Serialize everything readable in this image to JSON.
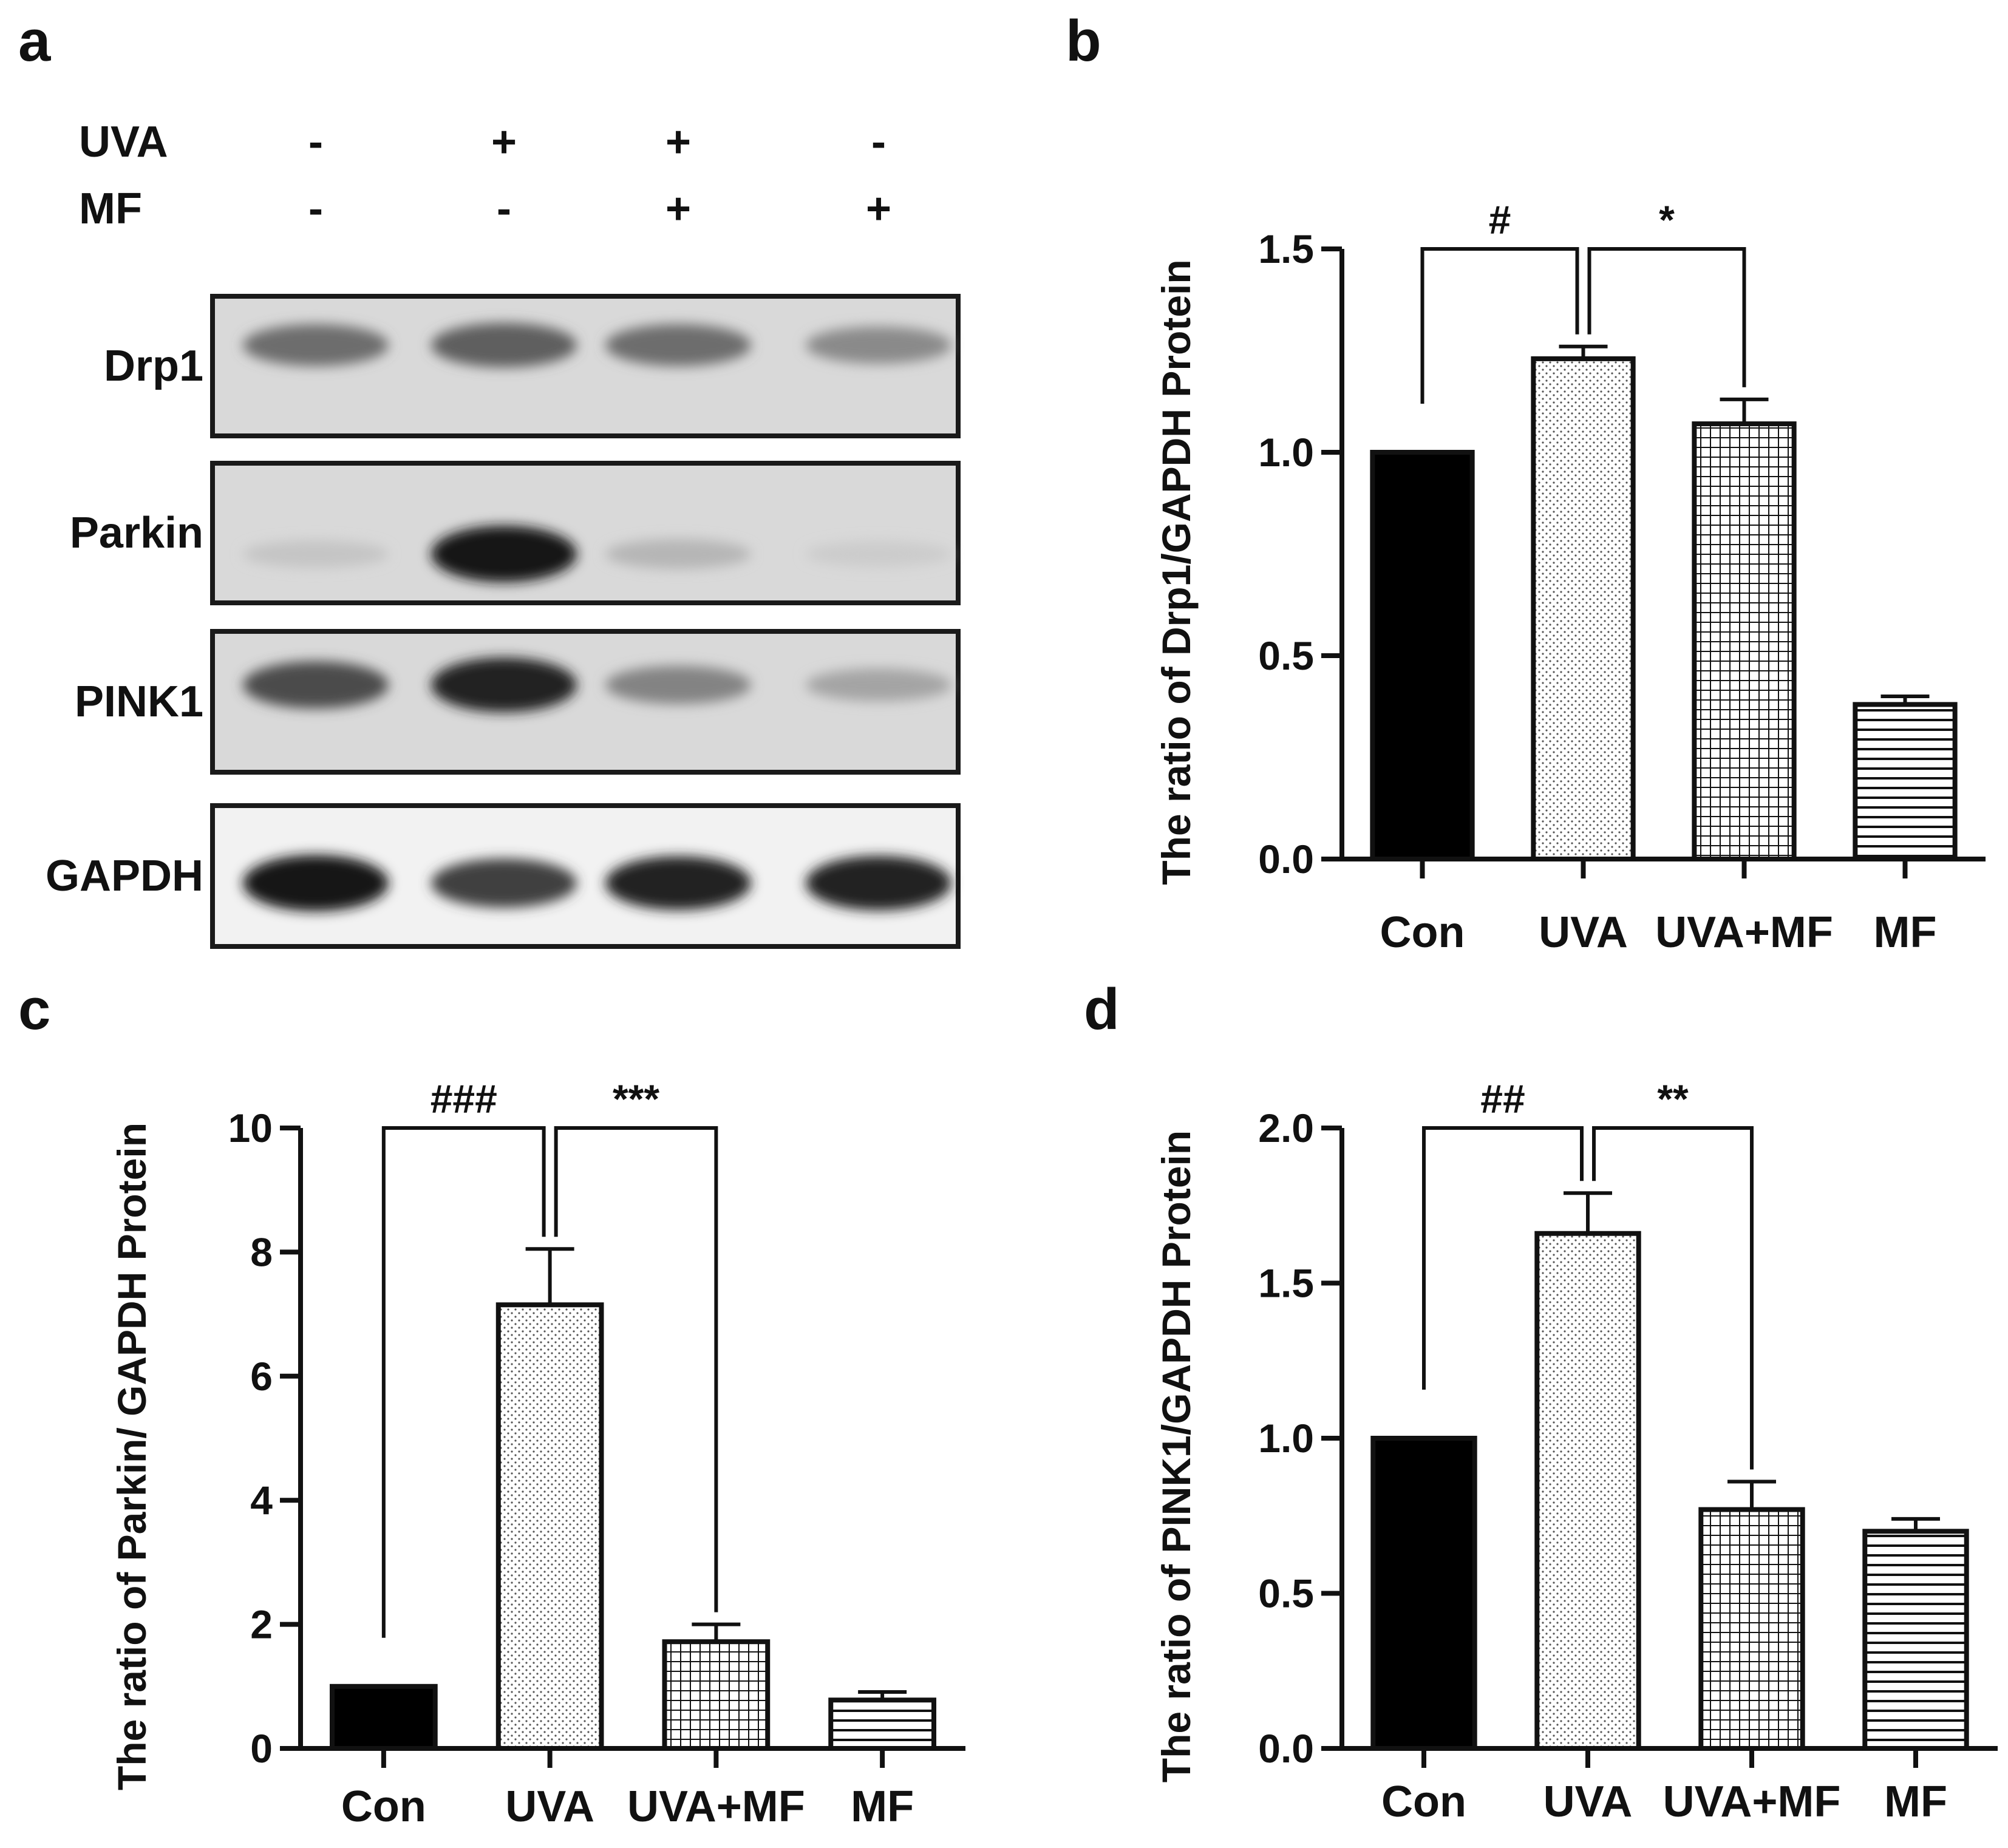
{
  "panel_letters": {
    "a": "a",
    "b": "b",
    "c": "c",
    "d": "d"
  },
  "blot": {
    "condition_rows": [
      {
        "label": "UVA",
        "marks": [
          "-",
          "+",
          "+",
          "-"
        ]
      },
      {
        "label": "MF",
        "marks": [
          "-",
          "-",
          "+",
          "+"
        ]
      }
    ],
    "bands": [
      {
        "label": "Drp1",
        "intensity": [
          0.55,
          0.62,
          0.55,
          0.42
        ]
      },
      {
        "label": "Parkin",
        "intensity": [
          0.15,
          0.95,
          0.22,
          0.12
        ]
      },
      {
        "label": "PINK1",
        "intensity": [
          0.7,
          0.9,
          0.45,
          0.3
        ]
      },
      {
        "label": "GAPDH",
        "intensity": [
          0.95,
          0.75,
          0.88,
          0.9
        ]
      }
    ]
  },
  "chart_data": [
    {
      "type": "bar",
      "panel": "b",
      "categories": [
        "Con",
        "UVA",
        "UVA+MF",
        "MF"
      ],
      "values": [
        1.0,
        1.23,
        1.07,
        0.38
      ],
      "errors": [
        0,
        0.03,
        0.06,
        0.02
      ],
      "patterns": [
        "solid",
        "dots",
        "grid",
        "hlines"
      ],
      "ylabel": "The ratio of Drp1/GAPDH Protein",
      "ylim": [
        0,
        1.5
      ],
      "yticks": [
        "0.0",
        "0.5",
        "1.0",
        "1.5"
      ],
      "significance": [
        {
          "label": "#",
          "from": 0,
          "to": 1,
          "level": 1.5
        },
        {
          "label": "*",
          "from": 1,
          "to": 2,
          "level": 1.5
        }
      ]
    },
    {
      "type": "bar",
      "panel": "c",
      "categories": [
        "Con",
        "UVA",
        "UVA+MF",
        "MF"
      ],
      "values": [
        1.0,
        7.15,
        1.72,
        0.78
      ],
      "errors": [
        0,
        0.9,
        0.28,
        0.13
      ],
      "patterns": [
        "solid",
        "dots",
        "grid",
        "hlines"
      ],
      "ylabel": "The ratio of Parkin/ GAPDH Protein",
      "ylim": [
        0,
        10
      ],
      "yticks": [
        "0",
        "2",
        "4",
        "6",
        "8",
        "10"
      ],
      "significance": [
        {
          "label": "###",
          "from": 0,
          "to": 1,
          "level": 10
        },
        {
          "label": "***",
          "from": 1,
          "to": 2,
          "level": 10
        }
      ]
    },
    {
      "type": "bar",
      "panel": "d",
      "categories": [
        "Con",
        "UVA",
        "UVA+MF",
        "MF"
      ],
      "values": [
        1.0,
        1.66,
        0.77,
        0.7
      ],
      "errors": [
        0,
        0.13,
        0.09,
        0.04
      ],
      "patterns": [
        "solid",
        "dots",
        "grid",
        "hlines"
      ],
      "ylabel": "The ratio of PINK1/GAPDH Protein",
      "ylim": [
        0,
        2.0
      ],
      "yticks": [
        "0.0",
        "0.5",
        "1.0",
        "1.5",
        "2.0"
      ],
      "significance": [
        {
          "label": "##",
          "from": 0,
          "to": 1,
          "level": 2.0
        },
        {
          "label": "**",
          "from": 1,
          "to": 2,
          "level": 2.0
        }
      ]
    }
  ]
}
